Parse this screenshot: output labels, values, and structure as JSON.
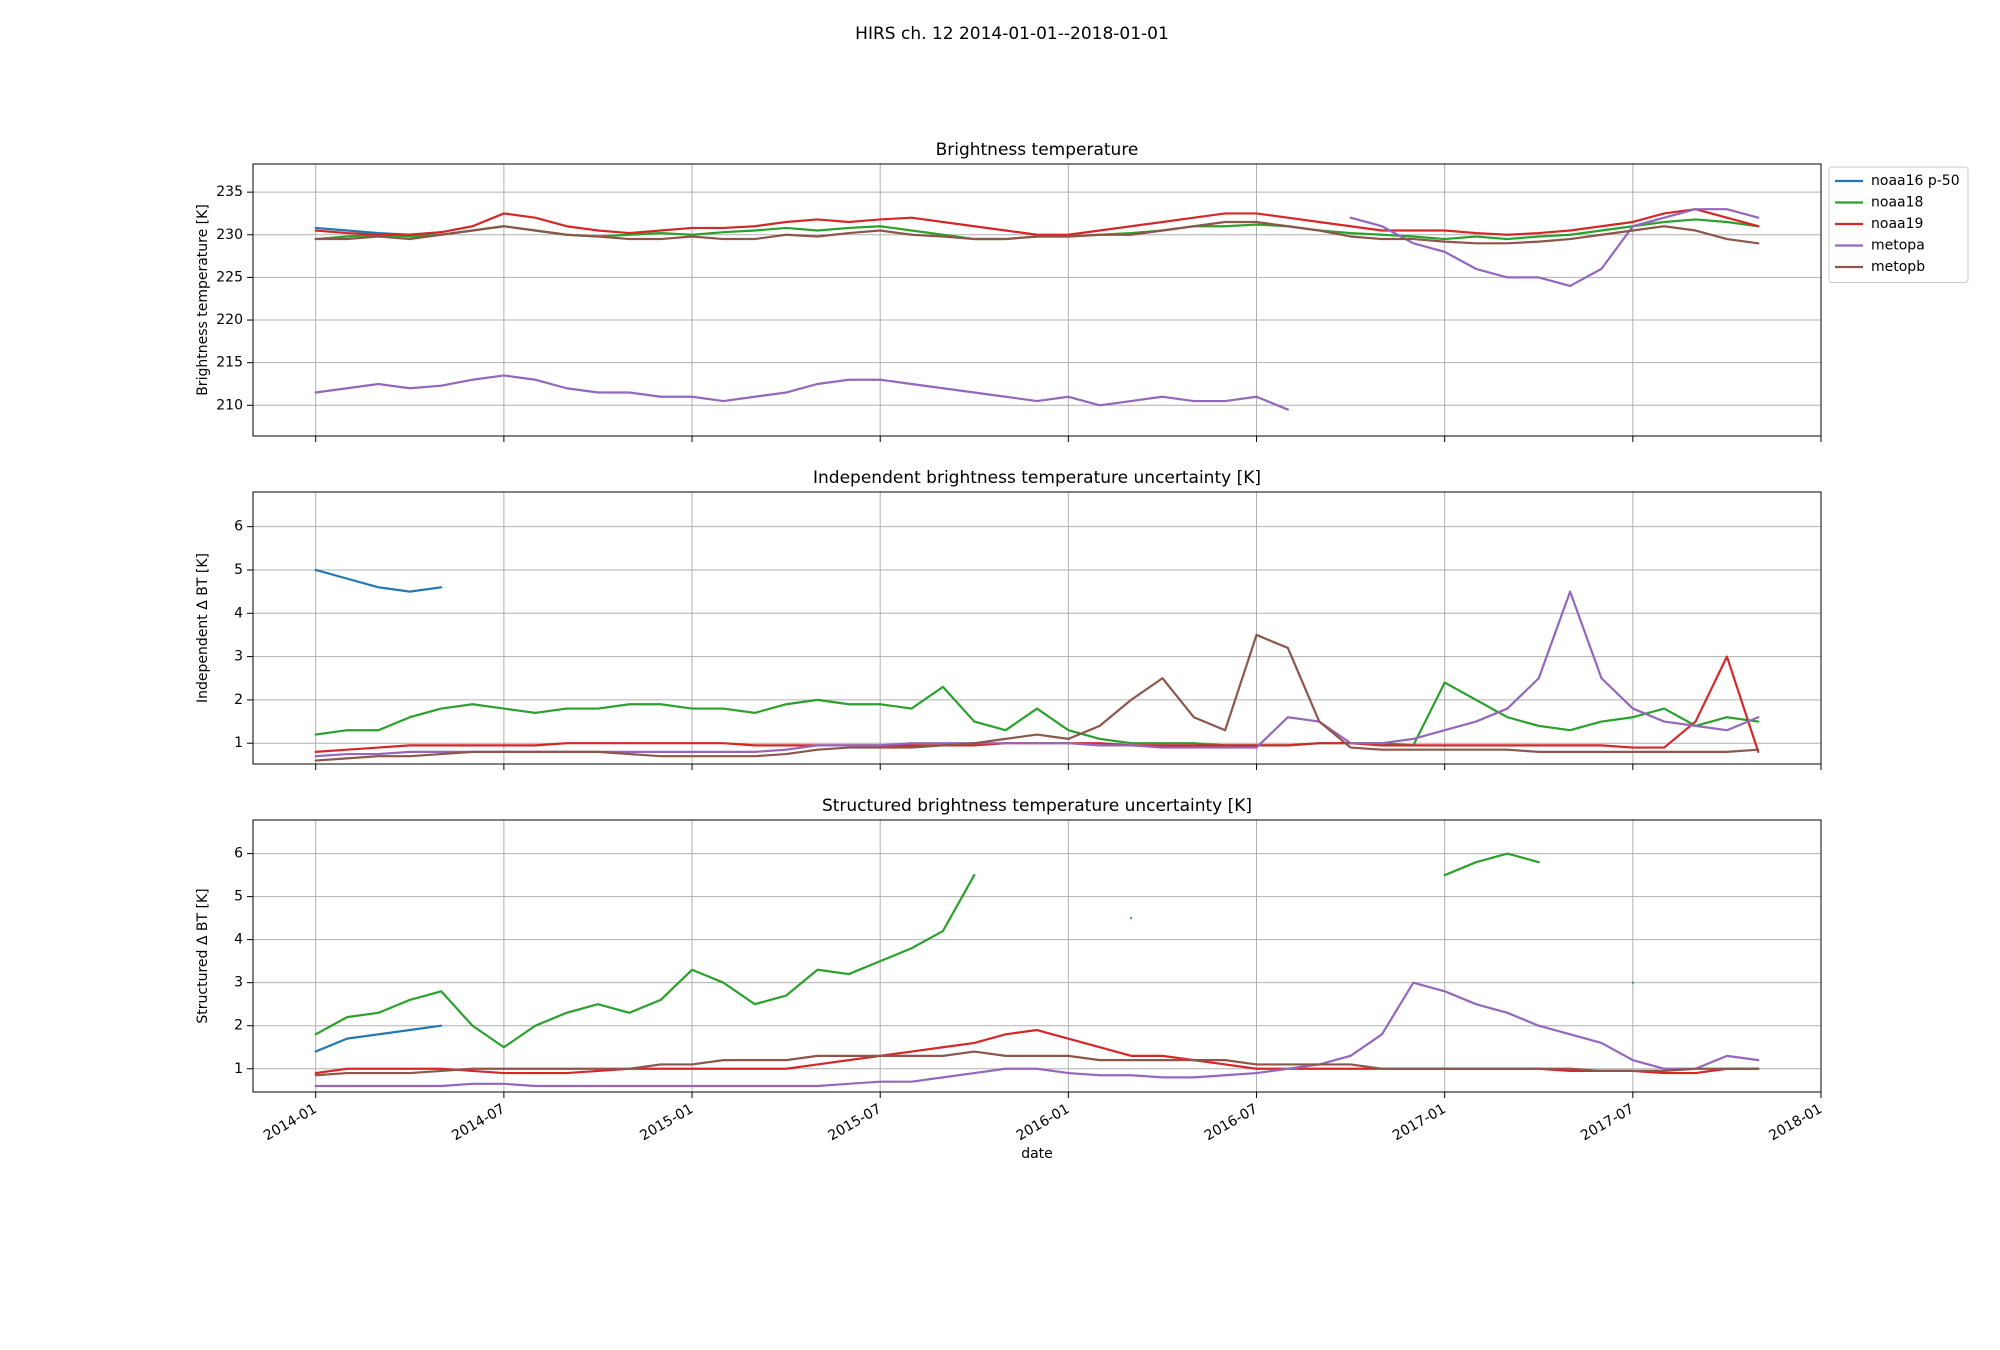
{
  "title": "HIRS ch. 12 2014-01-01--2018-01-01",
  "chart_data": [
    {
      "type": "line",
      "title": "Brightness temperature",
      "ylabel": "Brightness temperature [K]",
      "x": [
        "2014-01",
        "2014-02",
        "2014-03",
        "2014-04",
        "2014-05",
        "2014-06",
        "2014-07",
        "2014-08",
        "2014-09",
        "2014-10",
        "2014-11",
        "2014-12",
        "2015-01",
        "2015-02",
        "2015-03",
        "2015-04",
        "2015-05",
        "2015-06",
        "2015-07",
        "2015-08",
        "2015-09",
        "2015-10",
        "2015-11",
        "2015-12",
        "2016-01",
        "2016-02",
        "2016-03",
        "2016-04",
        "2016-05",
        "2016-06",
        "2016-07",
        "2016-08",
        "2016-09",
        "2016-10",
        "2016-11",
        "2016-12",
        "2017-01",
        "2017-02",
        "2017-03",
        "2017-04",
        "2017-05",
        "2017-06",
        "2017-07",
        "2017-08",
        "2017-09",
        "2017-10",
        "2017-11"
      ],
      "xlim": [
        "2013-11",
        "2018-01"
      ],
      "xticks": [
        "2014-01",
        "2014-07",
        "2015-01",
        "2015-07",
        "2016-01",
        "2016-07",
        "2017-01",
        "2017-07",
        "2018-01"
      ],
      "ylim": [
        206.4,
        238.3
      ],
      "yticks": [
        210,
        215,
        220,
        225,
        230,
        235
      ],
      "grid": true,
      "legend": "outside upper right",
      "series": [
        {
          "name": "noaa16 p-50",
          "color": "#1f77b4",
          "values": [
            230.8,
            230.5,
            230.2,
            230.0,
            230.3,
            null,
            null,
            null,
            null,
            null,
            null,
            null,
            null,
            null,
            null,
            null,
            null,
            null,
            null,
            null,
            null,
            null,
            null,
            null,
            null,
            null,
            null,
            null,
            null,
            null,
            null,
            null,
            null,
            null,
            null,
            null,
            null,
            null,
            null,
            null,
            null,
            null,
            null,
            null,
            null,
            null,
            null
          ]
        },
        {
          "name": "noaa18",
          "color": "#2ca02c",
          "values": [
            229.5,
            229.8,
            230.0,
            229.8,
            230.0,
            230.5,
            231.0,
            230.5,
            230.0,
            229.8,
            230.0,
            230.2,
            230.0,
            230.3,
            230.5,
            230.8,
            230.5,
            230.8,
            231.0,
            230.5,
            230.0,
            229.5,
            229.5,
            229.8,
            229.8,
            230.0,
            230.2,
            230.5,
            231.0,
            231.0,
            231.2,
            231.0,
            230.5,
            230.2,
            230.0,
            229.8,
            229.5,
            229.8,
            229.5,
            229.8,
            230.0,
            230.5,
            231.0,
            231.5,
            231.8,
            231.5,
            231.0
          ]
        },
        {
          "name": "noaa19",
          "color": "#d62728",
          "values": [
            230.5,
            230.2,
            230.0,
            230.0,
            230.3,
            231.0,
            232.5,
            232.0,
            231.0,
            230.5,
            230.2,
            230.5,
            230.8,
            230.8,
            231.0,
            231.5,
            231.8,
            231.5,
            231.8,
            232.0,
            231.5,
            231.0,
            230.5,
            230.0,
            230.0,
            230.5,
            231.0,
            231.5,
            232.0,
            232.5,
            232.5,
            232.0,
            231.5,
            231.0,
            230.5,
            230.5,
            230.5,
            230.2,
            230.0,
            230.2,
            230.5,
            231.0,
            231.5,
            232.5,
            233.0,
            232.0,
            231.0
          ]
        },
        {
          "name": "metopa",
          "color": "#9467bd",
          "values": [
            211.5,
            212.0,
            212.5,
            212.0,
            212.3,
            213.0,
            213.5,
            213.0,
            212.0,
            211.5,
            211.5,
            211.0,
            211.0,
            210.5,
            211.0,
            211.5,
            212.5,
            213.0,
            213.0,
            212.5,
            212.0,
            211.5,
            211.0,
            210.5,
            211.0,
            210.0,
            210.5,
            211.0,
            210.5,
            210.5,
            211.0,
            209.5,
            null,
            232.0,
            231.0,
            229.0,
            228.0,
            226.0,
            225.0,
            225.0,
            224.0,
            226.0,
            231.0,
            232.0,
            233.0,
            233.0,
            232.0
          ]
        },
        {
          "name": "metopb",
          "color": "#8c564b",
          "values": [
            229.5,
            229.5,
            229.8,
            229.5,
            230.0,
            230.5,
            231.0,
            230.5,
            230.0,
            229.8,
            229.5,
            229.5,
            229.8,
            229.5,
            229.5,
            230.0,
            229.8,
            230.2,
            230.5,
            230.0,
            229.8,
            229.5,
            229.5,
            229.8,
            229.8,
            230.0,
            230.0,
            230.5,
            231.0,
            231.5,
            231.5,
            231.0,
            230.5,
            229.8,
            229.5,
            229.5,
            229.2,
            229.0,
            229.0,
            229.2,
            229.5,
            230.0,
            230.5,
            231.0,
            230.5,
            229.5,
            229.0
          ]
        }
      ]
    },
    {
      "type": "line",
      "title": "Independent brightness temperature uncertainty [K]",
      "ylabel": "Independent Δ BT [K]",
      "x": [
        "2014-01",
        "2014-02",
        "2014-03",
        "2014-04",
        "2014-05",
        "2014-06",
        "2014-07",
        "2014-08",
        "2014-09",
        "2014-10",
        "2014-11",
        "2014-12",
        "2015-01",
        "2015-02",
        "2015-03",
        "2015-04",
        "2015-05",
        "2015-06",
        "2015-07",
        "2015-08",
        "2015-09",
        "2015-10",
        "2015-11",
        "2015-12",
        "2016-01",
        "2016-02",
        "2016-03",
        "2016-04",
        "2016-05",
        "2016-06",
        "2016-07",
        "2016-08",
        "2016-09",
        "2016-10",
        "2016-11",
        "2016-12",
        "2017-01",
        "2017-02",
        "2017-03",
        "2017-04",
        "2017-05",
        "2017-06",
        "2017-07",
        "2017-08",
        "2017-09",
        "2017-10",
        "2017-11"
      ],
      "xlim": [
        "2013-11",
        "2018-01"
      ],
      "xticks": [
        "2014-01",
        "2014-07",
        "2015-01",
        "2015-07",
        "2016-01",
        "2016-07",
        "2017-01",
        "2017-07",
        "2018-01"
      ],
      "ylim": [
        0.52,
        6.8
      ],
      "yticks": [
        1,
        2,
        3,
        4,
        5,
        6
      ],
      "grid": true,
      "series": [
        {
          "color": "#1f77b4",
          "values": [
            5.0,
            4.8,
            4.6,
            4.5,
            4.6,
            null,
            null,
            null,
            null,
            null,
            null,
            null,
            null,
            null,
            null,
            null,
            null,
            null,
            null,
            null,
            null,
            null,
            null,
            null,
            null,
            null,
            null,
            null,
            null,
            null,
            null,
            null,
            null,
            null,
            null,
            null,
            null,
            null,
            null,
            null,
            null,
            null,
            null,
            null,
            null,
            null,
            null
          ]
        },
        {
          "color": "#2ca02c",
          "values": [
            1.2,
            1.3,
            1.3,
            1.6,
            1.8,
            1.9,
            1.8,
            1.7,
            1.8,
            1.8,
            1.9,
            1.9,
            1.8,
            1.8,
            1.7,
            1.9,
            2.0,
            1.9,
            1.9,
            1.8,
            2.3,
            1.5,
            1.3,
            1.8,
            1.3,
            1.1,
            1.0,
            1.0,
            1.0,
            0.95,
            0.95,
            0.95,
            1.0,
            1.0,
            1.0,
            0.95,
            2.4,
            2.0,
            1.6,
            1.4,
            1.3,
            1.5,
            1.6,
            1.8,
            1.4,
            1.6,
            1.5
          ]
        },
        {
          "color": "#d62728",
          "values": [
            0.8,
            0.85,
            0.9,
            0.95,
            0.95,
            0.95,
            0.95,
            0.95,
            1.0,
            1.0,
            1.0,
            1.0,
            1.0,
            1.0,
            0.95,
            0.95,
            0.95,
            0.95,
            0.95,
            0.95,
            0.95,
            0.95,
            1.0,
            1.0,
            1.0,
            1.0,
            0.95,
            0.95,
            0.95,
            0.95,
            0.95,
            0.95,
            1.0,
            1.0,
            0.95,
            0.95,
            0.95,
            0.95,
            0.95,
            0.95,
            0.95,
            0.95,
            0.9,
            0.9,
            1.5,
            3.0,
            0.8
          ]
        },
        {
          "color": "#9467bd",
          "values": [
            0.7,
            0.75,
            0.75,
            0.8,
            0.8,
            0.8,
            0.8,
            0.8,
            0.8,
            0.8,
            0.8,
            0.8,
            0.8,
            0.8,
            0.8,
            0.85,
            0.95,
            0.95,
            0.95,
            1.0,
            1.0,
            1.0,
            1.0,
            1.0,
            1.0,
            0.95,
            0.95,
            0.9,
            0.9,
            0.9,
            0.9,
            1.6,
            1.5,
            1.0,
            1.0,
            1.1,
            1.3,
            1.5,
            1.8,
            2.5,
            4.5,
            2.5,
            1.8,
            1.5,
            1.4,
            1.3,
            1.6
          ]
        },
        {
          "color": "#8c564b",
          "values": [
            0.6,
            0.65,
            0.7,
            0.7,
            0.75,
            0.8,
            0.8,
            0.8,
            0.8,
            0.8,
            0.75,
            0.7,
            0.7,
            0.7,
            0.7,
            0.75,
            0.85,
            0.9,
            0.9,
            0.9,
            0.95,
            1.0,
            1.1,
            1.2,
            1.1,
            1.4,
            2.0,
            2.5,
            1.6,
            1.3,
            3.5,
            3.2,
            1.5,
            0.9,
            0.85,
            0.85,
            0.85,
            0.85,
            0.85,
            0.8,
            0.8,
            0.8,
            0.8,
            0.8,
            0.8,
            0.8,
            0.85
          ]
        }
      ]
    },
    {
      "type": "line",
      "title": "Structured brightness temperature uncertainty [K]",
      "ylabel": "Structured Δ BT [K]",
      "xlabel": "date",
      "x": [
        "2014-01",
        "2014-02",
        "2014-03",
        "2014-04",
        "2014-05",
        "2014-06",
        "2014-07",
        "2014-08",
        "2014-09",
        "2014-10",
        "2014-11",
        "2014-12",
        "2015-01",
        "2015-02",
        "2015-03",
        "2015-04",
        "2015-05",
        "2015-06",
        "2015-07",
        "2015-08",
        "2015-09",
        "2015-10",
        "2015-11",
        "2015-12",
        "2016-01",
        "2016-02",
        "2016-03",
        "2016-04",
        "2016-05",
        "2016-06",
        "2016-07",
        "2016-08",
        "2016-09",
        "2016-10",
        "2016-11",
        "2016-12",
        "2017-01",
        "2017-02",
        "2017-03",
        "2017-04",
        "2017-05",
        "2017-06",
        "2017-07",
        "2017-08",
        "2017-09",
        "2017-10",
        "2017-11"
      ],
      "xlim": [
        "2013-11",
        "2018-01"
      ],
      "xticks": [
        "2014-01",
        "2014-07",
        "2015-01",
        "2015-07",
        "2016-01",
        "2016-07",
        "2017-01",
        "2017-07",
        "2018-01"
      ],
      "ylim": [
        0.46,
        6.78
      ],
      "yticks": [
        1,
        2,
        3,
        4,
        5,
        6
      ],
      "grid": true,
      "series": [
        {
          "color": "#1f77b4",
          "values": [
            1.4,
            1.7,
            1.8,
            1.9,
            2.0,
            null,
            null,
            null,
            null,
            null,
            null,
            null,
            null,
            null,
            null,
            null,
            null,
            null,
            null,
            null,
            null,
            null,
            null,
            null,
            null,
            null,
            null,
            null,
            null,
            null,
            null,
            null,
            null,
            null,
            null,
            null,
            null,
            null,
            null,
            null,
            null,
            null,
            null,
            null,
            null,
            null,
            null
          ]
        },
        {
          "color": "#2ca02c",
          "values": [
            1.8,
            2.2,
            2.3,
            2.6,
            2.8,
            2.0,
            1.5,
            2.0,
            2.3,
            2.5,
            2.3,
            2.6,
            3.3,
            3.0,
            2.5,
            2.7,
            3.3,
            3.2,
            3.5,
            3.8,
            4.2,
            5.5,
            null,
            null,
            null,
            null,
            4.5,
            null,
            null,
            null,
            null,
            null,
            null,
            null,
            null,
            null,
            5.5,
            5.8,
            6.0,
            5.8,
            null,
            null,
            3.0,
            null,
            null,
            null,
            null
          ]
        },
        {
          "color": "#d62728",
          "values": [
            0.9,
            1.0,
            1.0,
            1.0,
            1.0,
            0.95,
            0.9,
            0.9,
            0.9,
            0.95,
            1.0,
            1.0,
            1.0,
            1.0,
            1.0,
            1.0,
            1.1,
            1.2,
            1.3,
            1.4,
            1.5,
            1.6,
            1.8,
            1.9,
            1.7,
            1.5,
            1.3,
            1.3,
            1.2,
            1.1,
            1.0,
            1.0,
            1.0,
            1.0,
            1.0,
            1.0,
            1.0,
            1.0,
            1.0,
            1.0,
            0.95,
            0.95,
            0.95,
            0.9,
            0.9,
            1.0,
            1.0
          ]
        },
        {
          "color": "#9467bd",
          "values": [
            0.6,
            0.6,
            0.6,
            0.6,
            0.6,
            0.65,
            0.65,
            0.6,
            0.6,
            0.6,
            0.6,
            0.6,
            0.6,
            0.6,
            0.6,
            0.6,
            0.6,
            0.65,
            0.7,
            0.7,
            0.8,
            0.9,
            1.0,
            1.0,
            0.9,
            0.85,
            0.85,
            0.8,
            0.8,
            0.85,
            0.9,
            1.0,
            1.1,
            1.3,
            1.8,
            3.0,
            2.8,
            2.5,
            2.3,
            2.0,
            1.8,
            1.6,
            1.2,
            1.0,
            1.0,
            1.3,
            1.2
          ]
        },
        {
          "color": "#8c564b",
          "values": [
            0.85,
            0.9,
            0.9,
            0.9,
            0.95,
            1.0,
            1.0,
            1.0,
            1.0,
            1.0,
            1.0,
            1.1,
            1.1,
            1.2,
            1.2,
            1.2,
            1.3,
            1.3,
            1.3,
            1.3,
            1.3,
            1.4,
            1.3,
            1.3,
            1.3,
            1.2,
            1.2,
            1.2,
            1.2,
            1.2,
            1.1,
            1.1,
            1.1,
            1.1,
            1.0,
            1.0,
            1.0,
            1.0,
            1.0,
            1.0,
            1.0,
            0.95,
            0.95,
            0.95,
            1.0,
            1.0,
            1.0
          ]
        }
      ]
    }
  ]
}
